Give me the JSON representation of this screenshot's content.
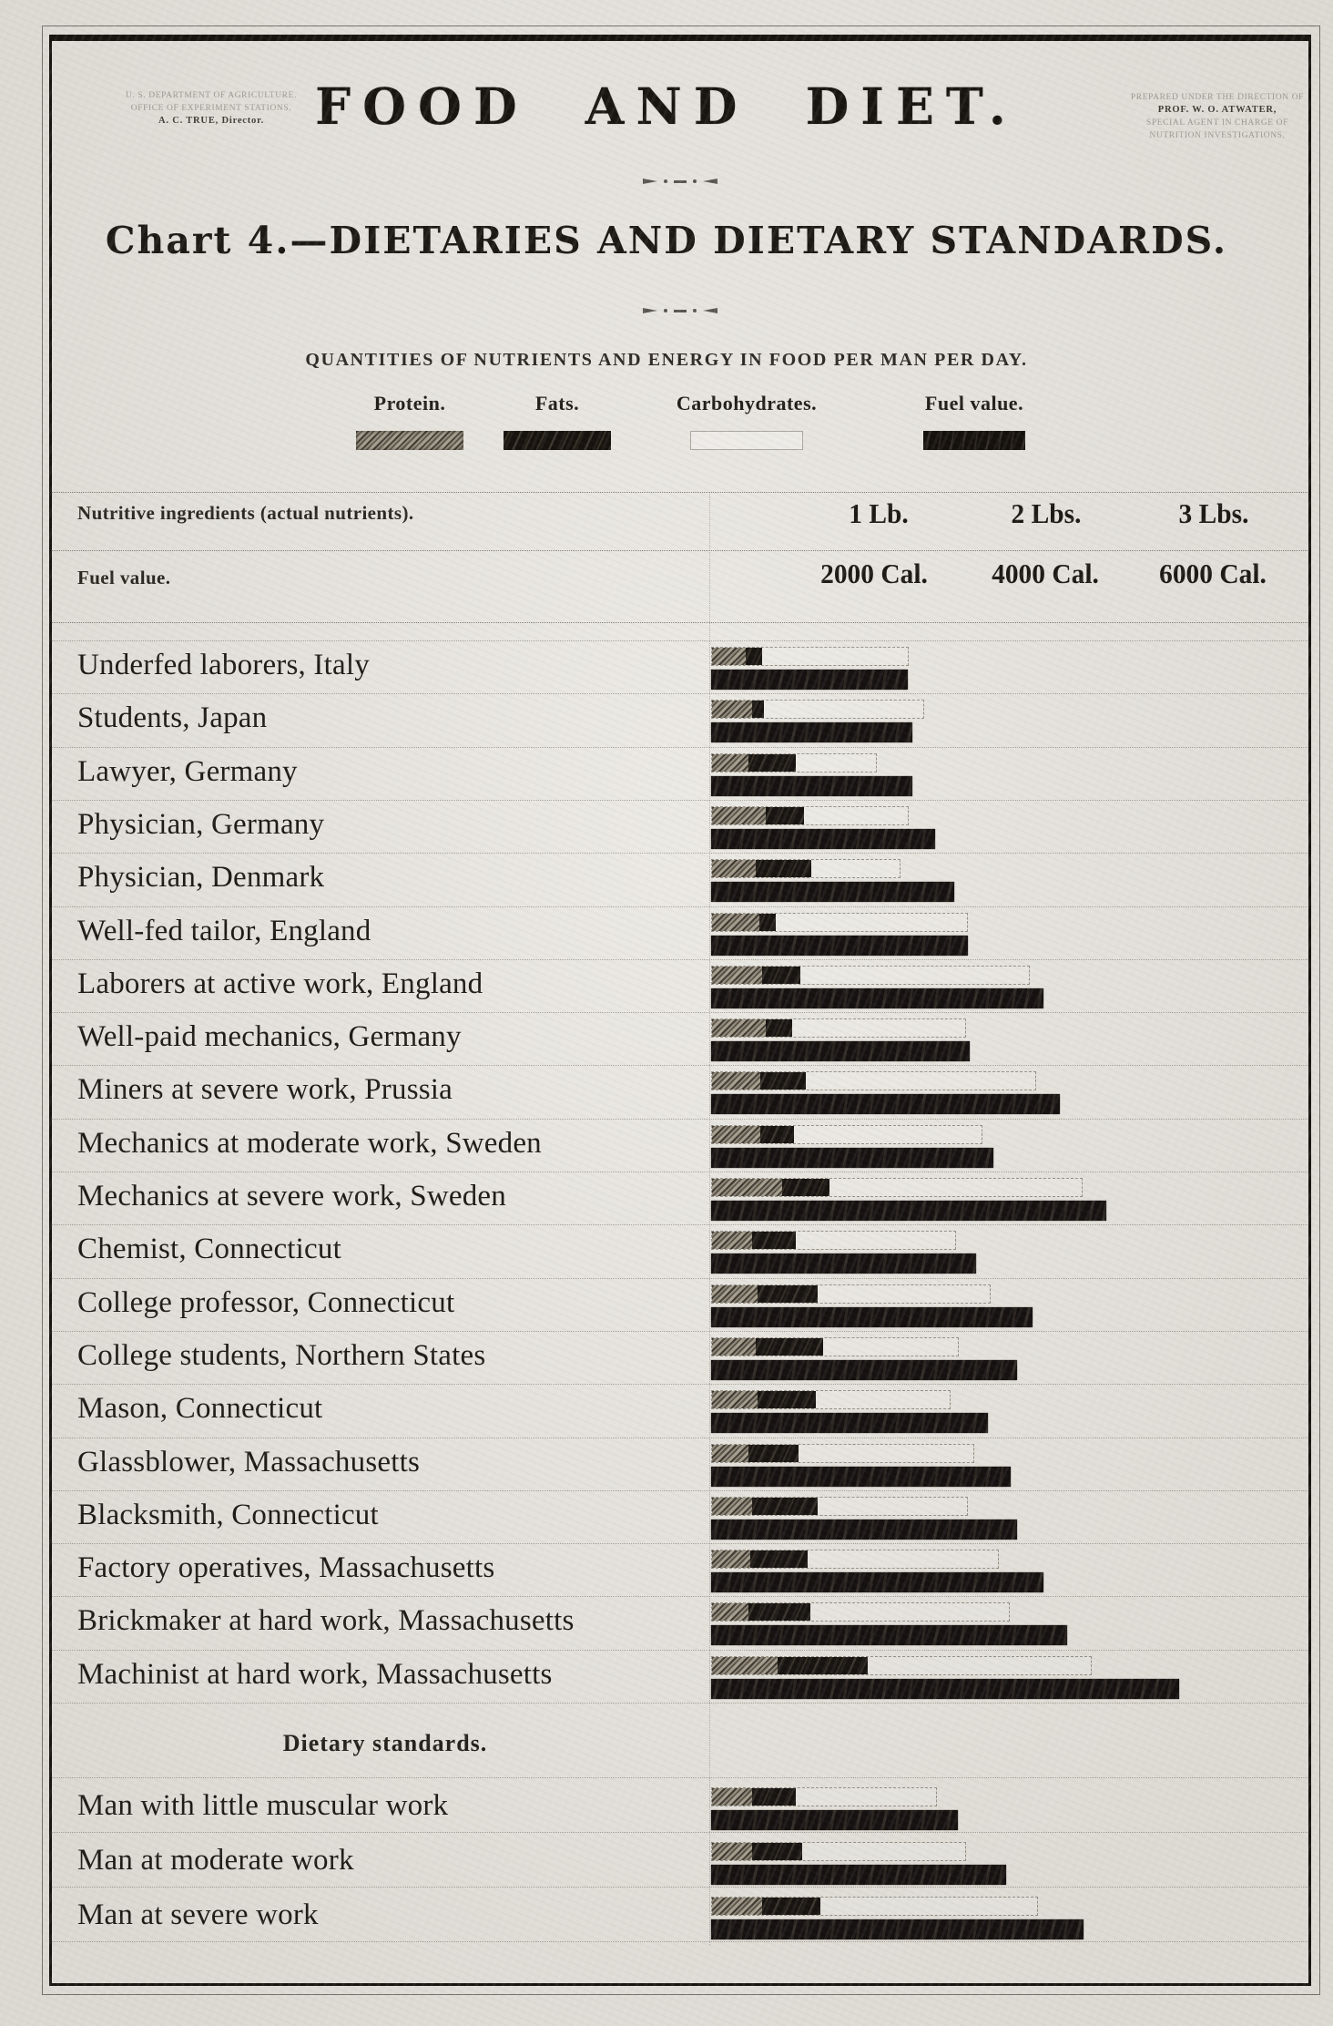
{
  "header": {
    "left_block": {
      "line1": "U. S. DEPARTMENT OF AGRICULTURE.",
      "line2": "OFFICE OF EXPERIMENT STATIONS.",
      "line3": "A. C. TRUE, Director."
    },
    "right_block": {
      "line1": "PREPARED UNDER THE DIRECTION OF",
      "line2": "PROF. W. O. ATWATER,",
      "line3": "SPECIAL AGENT IN CHARGE OF NUTRITION INVESTIGATIONS."
    },
    "title": "FOOD  AND  DIET.",
    "subtitle": "Chart 4.—DIETARIES AND DIETARY STANDARDS.",
    "caption": "QUANTITIES OF NUTRIENTS AND ENERGY IN FOOD PER MAN PER DAY."
  },
  "legend": {
    "items": [
      {
        "label": "Protein.",
        "style": "stipple-gray"
      },
      {
        "label": "Fats.",
        "style": "solid-black"
      },
      {
        "label": "Carbohydrates.",
        "style": "white-outline"
      },
      {
        "label": "Fuel value.",
        "style": "solid-black"
      }
    ]
  },
  "scale_header": {
    "nutrients_label": "Nutritive ingredients (actual nutrients).",
    "fuel_label": "Fuel value.",
    "nutrient_ticks": [
      "1 Lb.",
      "2 Lbs.",
      "3 Lbs."
    ],
    "fuel_ticks": [
      "2000 Cal.",
      "4000 Cal.",
      "6000 Cal."
    ]
  },
  "section_heading": "Dietary standards.",
  "colors": {
    "paper": "#e5e2db",
    "ink": "#17140f",
    "protein_swatch_gray": "#6e685c"
  },
  "chart_data": {
    "type": "bar",
    "orientation": "horizontal",
    "title": "Chart 4.—Dietaries and Dietary Standards",
    "subtitle": "Quantities of nutrients and energy in food per man per day",
    "stacked_nutrient_series": [
      "Protein",
      "Fats",
      "Carbohydrates"
    ],
    "second_bar_series": "Fuel value",
    "units": {
      "nutrients": "lbs",
      "fuel": "Calories"
    },
    "axis": {
      "nutrient_ticks_lb": [
        1,
        2,
        3
      ],
      "fuel_ticks_cal": [
        2000,
        4000,
        6000
      ],
      "alignment_note": "1 lb. of nutrients aligns with 2000 Cal. on the shared scale",
      "xlim_lb": [
        0,
        3.5
      ]
    },
    "groups": [
      {
        "name": "dietaries",
        "rows": [
          {
            "label": "Underfed laborers, Italy",
            "protein_lb": 0.2,
            "fats_lb": 0.1,
            "carbs_lb": 0.88,
            "fuel_cal": 2350
          },
          {
            "label": "Students, Japan",
            "protein_lb": 0.24,
            "fats_lb": 0.07,
            "carbs_lb": 0.96,
            "fuel_cal": 2400
          },
          {
            "label": "Lawyer, Germany",
            "protein_lb": 0.22,
            "fats_lb": 0.28,
            "carbs_lb": 0.49,
            "fuel_cal": 2400
          },
          {
            "label": "Physician, Germany",
            "protein_lb": 0.32,
            "fats_lb": 0.23,
            "carbs_lb": 0.63,
            "fuel_cal": 2670
          },
          {
            "label": "Physician, Denmark",
            "protein_lb": 0.26,
            "fats_lb": 0.33,
            "carbs_lb": 0.54,
            "fuel_cal": 2900
          },
          {
            "label": "Well-fed tailor, England",
            "protein_lb": 0.28,
            "fats_lb": 0.1,
            "carbs_lb": 1.15,
            "fuel_cal": 3070
          },
          {
            "label": "Laborers at active work, England",
            "protein_lb": 0.3,
            "fats_lb": 0.23,
            "carbs_lb": 1.37,
            "fuel_cal": 3970
          },
          {
            "label": "Well-paid mechanics, Germany",
            "protein_lb": 0.32,
            "fats_lb": 0.16,
            "carbs_lb": 1.04,
            "fuel_cal": 3090
          },
          {
            "label": "Miners at severe work, Prussia",
            "protein_lb": 0.29,
            "fats_lb": 0.27,
            "carbs_lb": 1.38,
            "fuel_cal": 4160
          },
          {
            "label": "Mechanics at moderate work, Sweden",
            "protein_lb": 0.29,
            "fats_lb": 0.2,
            "carbs_lb": 1.13,
            "fuel_cal": 3370
          },
          {
            "label": "Mechanics at severe work, Sweden",
            "protein_lb": 0.42,
            "fats_lb": 0.28,
            "carbs_lb": 1.52,
            "fuel_cal": 4720
          },
          {
            "label": "Chemist, Connecticut",
            "protein_lb": 0.24,
            "fats_lb": 0.26,
            "carbs_lb": 0.96,
            "fuel_cal": 3160
          },
          {
            "label": "College professor, Connecticut",
            "protein_lb": 0.27,
            "fats_lb": 0.36,
            "carbs_lb": 1.04,
            "fuel_cal": 3840
          },
          {
            "label": "College students, Northern States",
            "protein_lb": 0.26,
            "fats_lb": 0.4,
            "carbs_lb": 0.82,
            "fuel_cal": 3650
          },
          {
            "label": "Mason, Connecticut",
            "protein_lb": 0.27,
            "fats_lb": 0.35,
            "carbs_lb": 0.81,
            "fuel_cal": 3300
          },
          {
            "label": "Glassblower, Massachusetts",
            "protein_lb": 0.22,
            "fats_lb": 0.3,
            "carbs_lb": 1.05,
            "fuel_cal": 3580
          },
          {
            "label": "Blacksmith, Connecticut",
            "protein_lb": 0.24,
            "fats_lb": 0.39,
            "carbs_lb": 0.9,
            "fuel_cal": 3650
          },
          {
            "label": "Factory operatives, Massachusetts",
            "protein_lb": 0.23,
            "fats_lb": 0.34,
            "carbs_lb": 1.15,
            "fuel_cal": 3970
          },
          {
            "label": "Brickmaker at hard work, Massachusetts",
            "protein_lb": 0.22,
            "fats_lb": 0.37,
            "carbs_lb": 1.19,
            "fuel_cal": 4250
          },
          {
            "label": "Machinist at hard work, Massachusetts",
            "protein_lb": 0.39,
            "fats_lb": 0.54,
            "carbs_lb": 1.34,
            "fuel_cal": 5590
          }
        ]
      },
      {
        "name": "standards",
        "heading": "Dietary standards.",
        "rows": [
          {
            "label": "Man with little muscular work",
            "protein_lb": 0.24,
            "fats_lb": 0.26,
            "carbs_lb": 0.85,
            "fuel_cal": 2950
          },
          {
            "label": "Man at moderate work",
            "protein_lb": 0.24,
            "fats_lb": 0.3,
            "carbs_lb": 0.98,
            "fuel_cal": 3520
          },
          {
            "label": "Man at severe work",
            "protein_lb": 0.3,
            "fats_lb": 0.35,
            "carbs_lb": 1.3,
            "fuel_cal": 4450
          }
        ]
      }
    ]
  }
}
